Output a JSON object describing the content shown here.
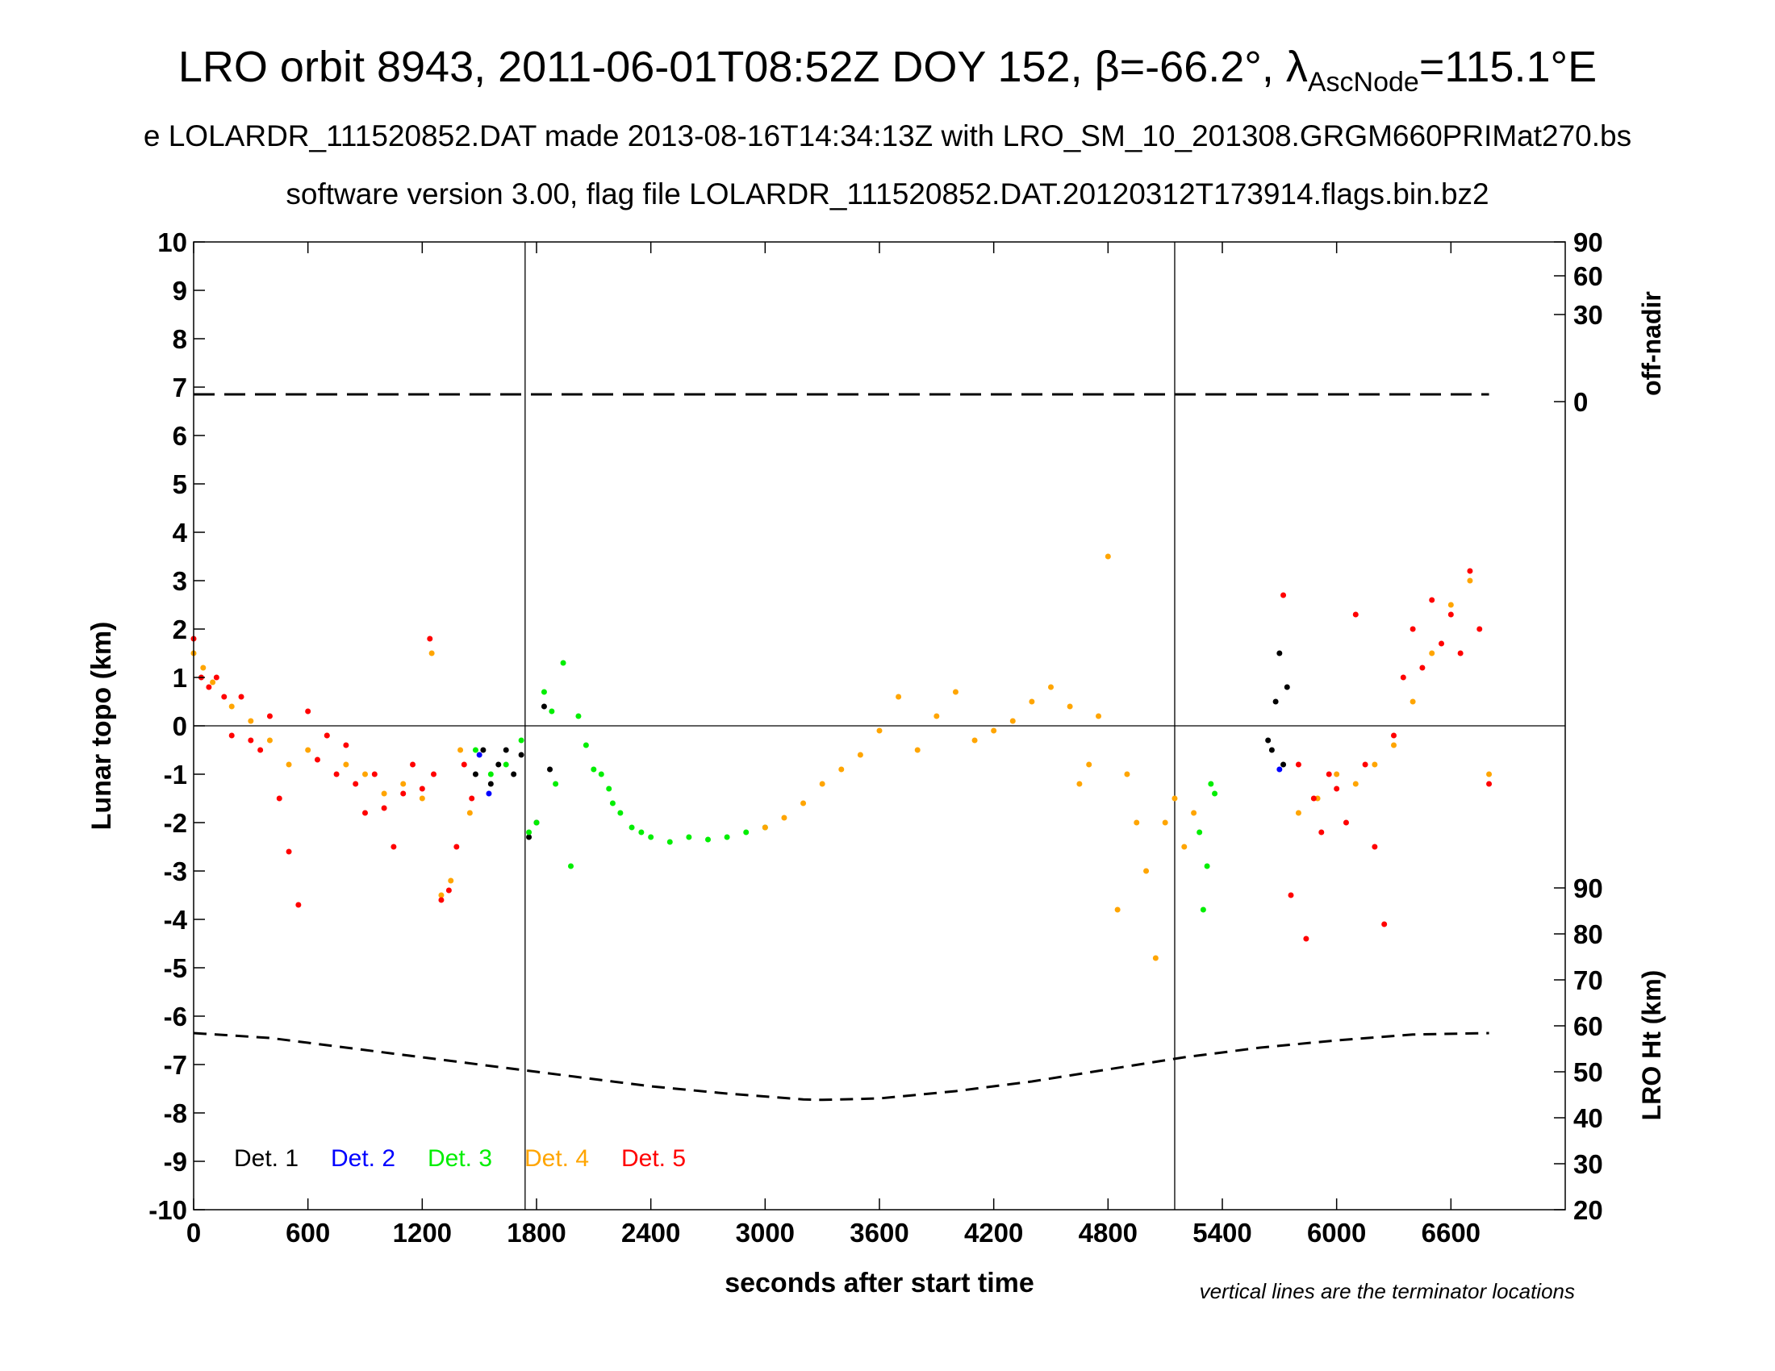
{
  "title_parts": {
    "main": "LRO orbit 8943, 2011-06-01T08:52Z DOY 152, β=-66.2°, λ",
    "sub": "AscNode",
    "end": "=115.1°E"
  },
  "subtitle1": "e LOLARDR_111520852.DAT made 2013-08-16T14:34:13Z with LRO_SM_10_201308.GRGM660PRIMat270.bs",
  "subtitle2": "software version 3.00, flag file LOLARDR_111520852.DAT.20120312T173914.flags.bin.bz2",
  "chart_data": {
    "type": "scatter",
    "xlabel": "seconds after start time",
    "ylabel": "Lunar topo (km)",
    "ylabel_right_top": "off-nadir",
    "ylabel_right_bottom": "LRO Ht (km)",
    "note": "vertical lines are the terminator locations",
    "xlim": [
      0,
      7200
    ],
    "ylim": [
      -10,
      10
    ],
    "x_ticks": [
      0,
      600,
      1200,
      1800,
      2400,
      3000,
      3600,
      4200,
      4800,
      5400,
      6000,
      6600
    ],
    "y_ticks": [
      -10,
      -9,
      -8,
      -7,
      -6,
      -5,
      -4,
      -3,
      -2,
      -1,
      0,
      1,
      2,
      3,
      4,
      5,
      6,
      7,
      8,
      9,
      10
    ],
    "offnadir_ticks": [
      {
        "label": "90",
        "y": 10.0
      },
      {
        "label": "60",
        "y": 9.3
      },
      {
        "label": "30",
        "y": 8.5
      },
      {
        "label": "0",
        "y": 6.7
      }
    ],
    "lro_ht_ticks": [
      {
        "label": "20",
        "y": -10.0
      },
      {
        "label": "30",
        "y": -9.05
      },
      {
        "label": "40",
        "y": -8.1
      },
      {
        "label": "50",
        "y": -7.15
      },
      {
        "label": "60",
        "y": -6.2
      },
      {
        "label": "70",
        "y": -5.25
      },
      {
        "label": "80",
        "y": -4.3
      },
      {
        "label": "90",
        "y": -3.35
      }
    ],
    "terminator_lines": [
      1740,
      5150
    ],
    "offnadir_line": {
      "x": [
        0,
        6800
      ],
      "y": 6.85
    },
    "lro_height_line": {
      "x": [
        0,
        400,
        800,
        1200,
        1600,
        2000,
        2400,
        2800,
        3200,
        3300,
        3600,
        4000,
        4400,
        4800,
        5200,
        5600,
        6000,
        6400,
        6800
      ],
      "y": [
        -6.35,
        -6.45,
        -6.65,
        -6.85,
        -7.05,
        -7.25,
        -7.45,
        -7.6,
        -7.72,
        -7.73,
        -7.7,
        -7.55,
        -7.35,
        -7.1,
        -6.85,
        -6.65,
        -6.5,
        -6.38,
        -6.35
      ]
    },
    "series": [
      {
        "name": "Det. 1",
        "color": "#000000",
        "x": [
          1480,
          1520,
          1560,
          1600,
          1640,
          1680,
          1720,
          1760,
          1800,
          1840,
          1870,
          5640,
          5660,
          5680,
          5700,
          5720,
          5740
        ],
        "y": [
          -1.0,
          -0.5,
          -1.2,
          -0.8,
          -0.5,
          -1.0,
          -0.6,
          -2.3,
          -2.0,
          0.4,
          -0.9,
          -0.3,
          -0.5,
          0.5,
          1.5,
          -0.8,
          0.8
        ]
      },
      {
        "name": "Det. 2",
        "color": "#0000ff",
        "x": [
          1500,
          1550,
          5700
        ],
        "y": [
          -0.6,
          -1.4,
          -0.9
        ]
      },
      {
        "name": "Det. 3",
        "color": "#00ee00",
        "x": [
          1480,
          1560,
          1640,
          1720,
          1760,
          1800,
          1840,
          1880,
          1900,
          1940,
          1980,
          2020,
          2060,
          2100,
          2140,
          2180,
          2200,
          2240,
          2300,
          2350,
          2400,
          2500,
          2600,
          2700,
          2800,
          2900,
          3000,
          5280,
          5300,
          5320,
          5340,
          5360
        ],
        "y": [
          -0.5,
          -1.0,
          -0.8,
          -0.3,
          -2.2,
          -2.0,
          0.7,
          0.3,
          -1.2,
          1.3,
          -2.9,
          0.2,
          -0.4,
          -0.9,
          -1.0,
          -1.3,
          -1.6,
          -1.8,
          -2.1,
          -2.2,
          -2.3,
          -2.4,
          -2.3,
          -2.35,
          -2.3,
          -2.2,
          -2.1,
          -2.2,
          -3.8,
          -2.9,
          -1.2,
          -1.4
        ]
      },
      {
        "name": "Det. 4",
        "color": "#ffa500",
        "x": [
          0,
          50,
          100,
          200,
          300,
          400,
          500,
          600,
          700,
          800,
          900,
          1000,
          1100,
          1200,
          1250,
          1300,
          1350,
          1400,
          1450,
          3000,
          3100,
          3200,
          3300,
          3400,
          3500,
          3600,
          3700,
          3800,
          3900,
          4000,
          4100,
          4200,
          4300,
          4400,
          4500,
          4600,
          4650,
          4700,
          4750,
          4800,
          4850,
          4900,
          4950,
          5000,
          5050,
          5100,
          5150,
          5200,
          5250,
          5800,
          5900,
          6000,
          6100,
          6200,
          6300,
          6400,
          6500,
          6600,
          6700,
          6800
        ],
        "y": [
          1.5,
          1.2,
          0.9,
          0.4,
          0.1,
          -0.3,
          -0.8,
          -0.5,
          -0.2,
          -0.8,
          -1.0,
          -1.4,
          -1.2,
          -1.5,
          1.5,
          -3.5,
          -3.2,
          -0.5,
          -1.8,
          -2.1,
          -1.9,
          -1.6,
          -1.2,
          -0.9,
          -0.6,
          -0.1,
          0.6,
          -0.5,
          0.2,
          0.7,
          -0.3,
          -0.1,
          0.1,
          0.5,
          0.8,
          0.4,
          -1.2,
          -0.8,
          0.2,
          3.5,
          -3.8,
          -1.0,
          -2.0,
          -3.0,
          -4.8,
          -2.0,
          -1.5,
          -2.5,
          -1.8,
          -1.8,
          -1.5,
          -1.0,
          -1.2,
          -0.8,
          -0.4,
          0.5,
          1.5,
          2.5,
          3.0,
          -1.0
        ]
      },
      {
        "name": "Det. 5",
        "color": "#ff0000",
        "x": [
          0,
          40,
          80,
          120,
          160,
          200,
          250,
          300,
          350,
          400,
          450,
          500,
          550,
          600,
          650,
          700,
          750,
          800,
          850,
          900,
          950,
          1000,
          1050,
          1100,
          1150,
          1200,
          1240,
          1260,
          1300,
          1340,
          1380,
          1420,
          1460,
          5720,
          5760,
          5800,
          5840,
          5880,
          5920,
          5960,
          6000,
          6050,
          6100,
          6150,
          6200,
          6250,
          6300,
          6350,
          6400,
          6450,
          6500,
          6550,
          6600,
          6650,
          6700,
          6750,
          6800
        ],
        "y": [
          1.8,
          1.0,
          0.8,
          1.0,
          0.6,
          -0.2,
          0.6,
          -0.3,
          -0.5,
          0.2,
          -1.5,
          -2.6,
          -3.7,
          0.3,
          -0.7,
          -0.2,
          -1.0,
          -0.4,
          -1.2,
          -1.8,
          -1.0,
          -1.7,
          -2.5,
          -1.4,
          -0.8,
          -1.3,
          1.8,
          -1.0,
          -3.6,
          -3.4,
          -2.5,
          -0.8,
          -1.5,
          2.7,
          -3.5,
          -0.8,
          -4.4,
          -1.5,
          -2.2,
          -1.0,
          -1.3,
          -2.0,
          2.3,
          -0.8,
          -2.5,
          -4.1,
          -0.2,
          1.0,
          2.0,
          1.2,
          2.6,
          1.7,
          2.3,
          1.5,
          3.2,
          2.0,
          -1.2
        ]
      }
    ],
    "legend_placement": "bottom-left",
    "grid": false
  }
}
